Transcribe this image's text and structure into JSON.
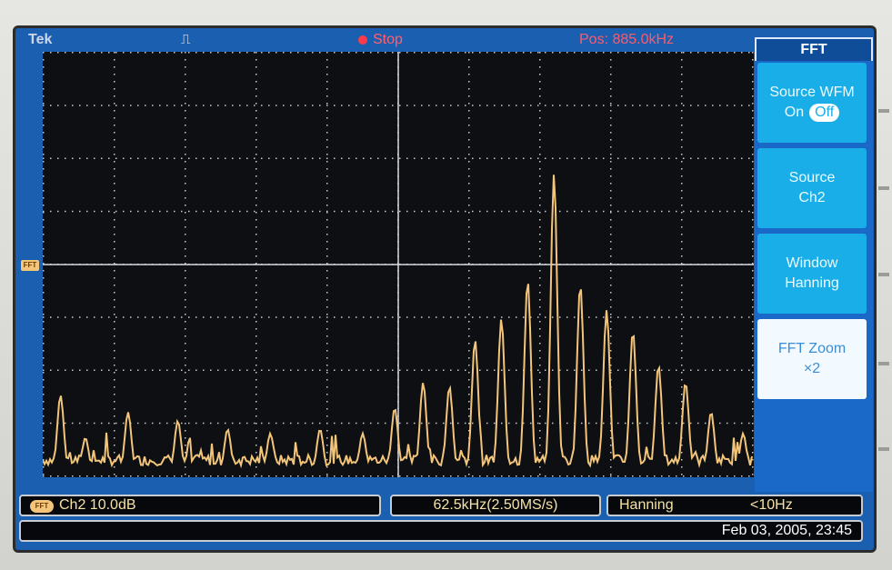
{
  "topbar": {
    "brand": "Tek",
    "trigger_icon": "rising-edge-pulse-icon",
    "run_status": "Stop",
    "position": "Pos: 885.0kHz"
  },
  "channel_marker": "FFT",
  "menu": {
    "title": "FFT",
    "items": [
      {
        "line1": "Source WFM",
        "on_label": "On",
        "off_label": "Off"
      },
      {
        "line1": "Source",
        "line2": "Ch2"
      },
      {
        "line1": "Window",
        "line2": "Hanning"
      },
      {
        "line1": "FFT Zoom",
        "line2": "×2"
      }
    ]
  },
  "status": {
    "badge": "FFT",
    "channel_scale": "Ch2  10.0dB",
    "span_rate": "62.5kHz(2.50MS/s)",
    "window": "Hanning",
    "resolution": "<10Hz",
    "datetime": "Feb 03, 2005, 23:45"
  },
  "colors": {
    "screen_bg": "#1b5fb0",
    "trace": "#f3c57a",
    "menu_item": "#1aaee8",
    "selected_item": "#f2f9ff",
    "stop_text": "#ff6070"
  },
  "spectrum": {
    "peaks": [
      {
        "f": 0.025,
        "a": 0.18
      },
      {
        "f": 0.06,
        "a": 0.08
      },
      {
        "f": 0.12,
        "a": 0.14
      },
      {
        "f": 0.19,
        "a": 0.12
      },
      {
        "f": 0.26,
        "a": 0.1
      },
      {
        "f": 0.32,
        "a": 0.09
      },
      {
        "f": 0.39,
        "a": 0.1
      },
      {
        "f": 0.45,
        "a": 0.09
      },
      {
        "f": 0.495,
        "a": 0.15
      },
      {
        "f": 0.535,
        "a": 0.21
      },
      {
        "f": 0.572,
        "a": 0.2
      },
      {
        "f": 0.608,
        "a": 0.31
      },
      {
        "f": 0.645,
        "a": 0.36
      },
      {
        "f": 0.682,
        "a": 0.45
      },
      {
        "f": 0.719,
        "a": 0.7
      },
      {
        "f": 0.756,
        "a": 0.44
      },
      {
        "f": 0.793,
        "a": 0.38
      },
      {
        "f": 0.83,
        "a": 0.33
      },
      {
        "f": 0.866,
        "a": 0.25
      },
      {
        "f": 0.904,
        "a": 0.21
      },
      {
        "f": 0.94,
        "a": 0.14
      },
      {
        "f": 0.985,
        "a": 0.09
      }
    ]
  }
}
